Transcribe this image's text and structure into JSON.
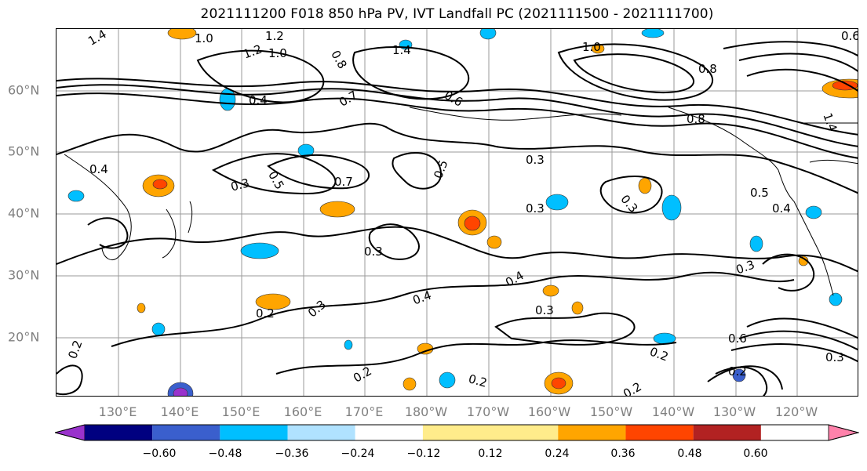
{
  "title": "2021111200 F018 850 hPa PV, IVT Landfall PC (2021111500 - 2021111700)",
  "lat_labels": [
    "60°N",
    "50°N",
    "40°N",
    "30°N",
    "20°N"
  ],
  "lon_labels": [
    "130°E",
    "140°E",
    "150°E",
    "160°E",
    "170°E",
    "180°W",
    "170°W",
    "160°W",
    "150°W",
    "140°W",
    "130°W",
    "120°W"
  ],
  "contour_labels": [
    "1.4",
    "1.0",
    "1.2",
    "1.0",
    "0.8",
    "1.2",
    "1.4",
    "0.6",
    "0.4",
    "0.7",
    "1.0",
    "0.8",
    "0.8",
    "0.4",
    "0.3",
    "0.5",
    "0.7",
    "0.5",
    "0.3",
    "0.3",
    "0.3",
    "0.5",
    "0.4",
    "0.3",
    "0.3",
    "0.4",
    "0.4",
    "0.2",
    "0.3",
    "0.3",
    "0.2",
    "0.6",
    "0.2",
    "0.2",
    "0.2",
    "0.2",
    "0.3",
    "0.2",
    "1.4",
    "0.6"
  ],
  "colorbar": {
    "ticks": [
      "−0.60",
      "−0.48",
      "−0.36",
      "−0.24",
      "−0.12",
      "0.12",
      "0.24",
      "0.36",
      "0.48",
      "0.60"
    ],
    "colors": [
      "#9932cc",
      "#000080",
      "#3a5fcd",
      "#00bfff",
      "#b0e2ff",
      "#ffffff",
      "#ffec8b",
      "#ffa500",
      "#ff4500",
      "#b22222",
      "#ff82ab"
    ]
  },
  "icon_names": [
    "contour-map",
    "colorbar-extend-arrow"
  ]
}
